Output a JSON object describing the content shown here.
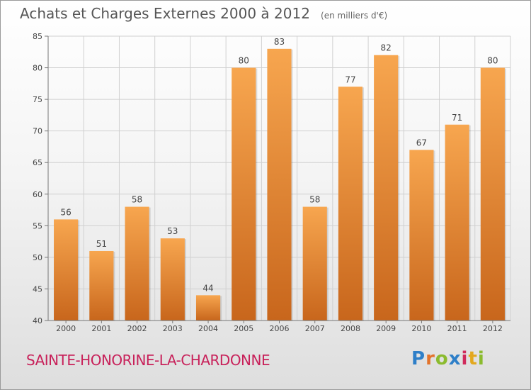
{
  "title": "Achats et Charges Externes 2000 à 2012",
  "subtitle": "(en milliers d'€)",
  "commune": "SAINTE-HONORINE-LA-CHARDONNE",
  "logo": {
    "letters": [
      "P",
      "r",
      "o",
      "x",
      "i",
      "t",
      "i"
    ],
    "colors": [
      "#2e7fc8",
      "#e3732b",
      "#8bbb2e",
      "#2e7fc8",
      "#d02a5b",
      "#e3a81e",
      "#8bbb2e"
    ]
  },
  "colors": {
    "bar_light": "#f7a64f",
    "bar_dark": "#c8661c",
    "grid": "#d0d0d0"
  },
  "chart_data": {
    "type": "bar",
    "categories": [
      "2000",
      "2001",
      "2002",
      "2003",
      "2004",
      "2005",
      "2006",
      "2007",
      "2008",
      "2009",
      "2010",
      "2011",
      "2012"
    ],
    "values": [
      56,
      51,
      58,
      53,
      44,
      80,
      83,
      58,
      77,
      82,
      67,
      71,
      80
    ],
    "title": "Achats et Charges Externes 2000 à 2012",
    "xlabel": "",
    "ylabel": "",
    "ylim": [
      40,
      85
    ],
    "yticks": [
      40,
      45,
      50,
      55,
      60,
      65,
      70,
      75,
      80,
      85
    ],
    "grid": true
  }
}
